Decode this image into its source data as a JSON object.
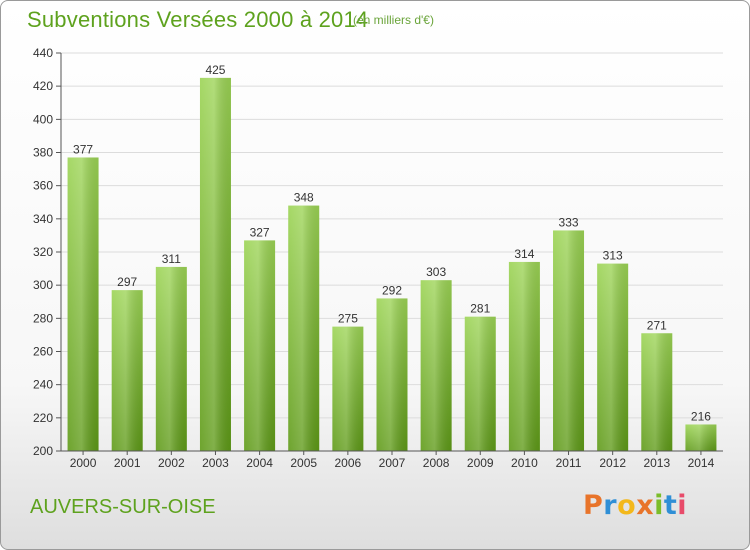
{
  "header": {
    "title": "Subventions Versées 2000 à 2014",
    "unit_note": "(en milliers d'€)"
  },
  "footer": {
    "commune": "AUVERS-SUR-OISE",
    "logo_text": "Proxiti"
  },
  "colors": {
    "accent": "#5ea21e",
    "bar_top": "#9cd455",
    "bar_bottom": "#5e9a17",
    "grid": "#dcdcdc",
    "logo_letters": [
      "#e8742a",
      "#2f8fd6",
      "#f3b81b",
      "#e8742a",
      "#7bbd2a",
      "#2f8fd6",
      "#e84b6a"
    ]
  },
  "chart_data": {
    "type": "bar",
    "title": "Subventions Versées 2000 à 2014",
    "subtitle": "(en milliers d'€)",
    "categories": [
      "2000",
      "2001",
      "2002",
      "2003",
      "2004",
      "2005",
      "2006",
      "2007",
      "2008",
      "2009",
      "2010",
      "2011",
      "2012",
      "2013",
      "2014"
    ],
    "values": [
      377,
      297,
      311,
      425,
      327,
      348,
      275,
      292,
      303,
      281,
      314,
      333,
      313,
      271,
      216
    ],
    "xlabel": "",
    "ylabel": "",
    "ylim": [
      200,
      440
    ],
    "yticks": [
      200,
      220,
      240,
      260,
      280,
      300,
      320,
      340,
      360,
      380,
      400,
      420,
      440
    ],
    "grid": true,
    "legend": "none"
  }
}
